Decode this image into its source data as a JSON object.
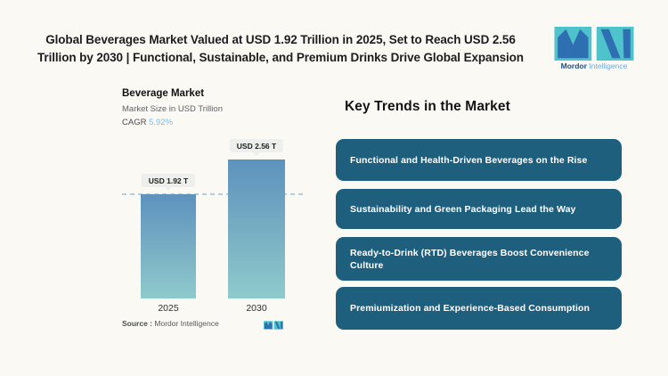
{
  "header": {
    "title_line1": "Global Beverages Market Valued at USD 1.92 Trillion in 2025, Set to Reach USD 2.56",
    "title_line2": "Trillion by 2030 | Functional, Sustainable, and Premium Drinks Drive Global Expansion",
    "logo": {
      "brand_primary": "Mordor",
      "brand_secondary": "Intelligence"
    }
  },
  "chart": {
    "title": "Beverage Market",
    "subtitle": "Market Size in USD Trillion",
    "cagr_label": "CAGR",
    "cagr_value": "5.92%",
    "source_label": "Source :",
    "source_value": "Mordor Intelligence"
  },
  "chart_data": {
    "type": "bar",
    "title": "Beverage Market",
    "ylabel": "Market Size in USD Trillion",
    "unit": "USD Trillion",
    "categories": [
      "2025",
      "2030"
    ],
    "values": [
      1.92,
      2.56
    ],
    "value_labels": [
      "USD 1.92 T",
      "USD 2.56 T"
    ],
    "cagr": "5.92%",
    "reference_line": {
      "at_value": 1.92,
      "style": "dashed"
    },
    "ylim": [
      0,
      3
    ],
    "grid": false,
    "legend": "none"
  },
  "trends": {
    "heading": "Key Trends in the Market",
    "items": [
      {
        "label": "Functional and Health-Driven Beverages on the Rise"
      },
      {
        "label": "Sustainability and Green Packaging Lead the Way"
      },
      {
        "label": "Ready-to-Drink (RTD) Beverages Boost Convenience Culture"
      },
      {
        "label": "Premiumization and Experience-Based Consumption"
      }
    ]
  },
  "colors": {
    "background": "#FBF9F4",
    "title_text": "#1D1D1F",
    "banner_bg": "#1F5F7E",
    "banner_text": "#FFFFFF",
    "bar_gradient_top": "#5D92BD",
    "bar_gradient_bottom": "#8ECACD",
    "cagr_accent": "#85BADF",
    "dashed_line": "#AFCEE0",
    "badge_bg": "#EDEFED",
    "logo_teal": "#4EC3CB",
    "logo_blue": "#2E6FB2"
  }
}
